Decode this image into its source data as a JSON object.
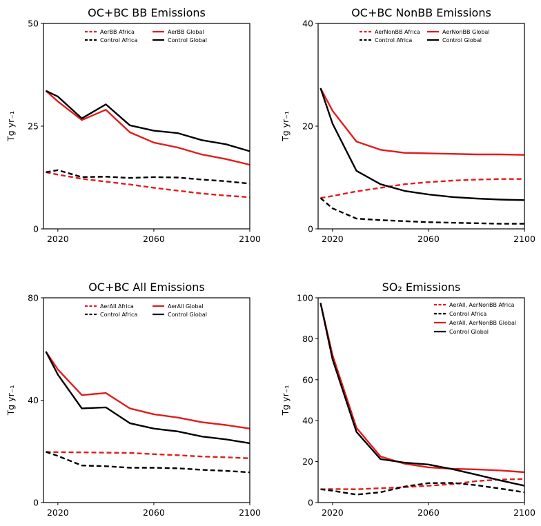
{
  "chart_data": [
    {
      "type": "line",
      "title": "OC+BC BB Emissions",
      "ylabel": "Tg yr₋₁",
      "xlim": [
        2014,
        2100
      ],
      "ylim": [
        0,
        50
      ],
      "xticks": [
        2020,
        2060,
        2100
      ],
      "yticks": [
        0,
        25,
        50
      ],
      "legend_cols": 2,
      "colors": {
        "red": "#e41a1c",
        "black": "#000000"
      },
      "series": [
        {
          "name": "AerBB Africa",
          "color": "red",
          "style": "dashed",
          "x": [
            2015,
            2020,
            2030,
            2040,
            2050,
            2060,
            2070,
            2080,
            2090,
            2100
          ],
          "y": [
            13.8,
            13.2,
            12.2,
            11.5,
            10.8,
            10.0,
            9.3,
            8.6,
            8.1,
            7.7
          ]
        },
        {
          "name": "AerBB Global",
          "color": "red",
          "style": "solid",
          "x": [
            2015,
            2020,
            2030,
            2040,
            2050,
            2060,
            2070,
            2080,
            2090,
            2100
          ],
          "y": [
            33.6,
            31.0,
            26.5,
            29.0,
            23.5,
            21.0,
            19.8,
            18.1,
            17.0,
            15.6
          ]
        },
        {
          "name": "Control Africa",
          "color": "black",
          "style": "dashed",
          "x": [
            2015,
            2020,
            2030,
            2040,
            2050,
            2060,
            2070,
            2080,
            2090,
            2100
          ],
          "y": [
            13.8,
            14.3,
            12.6,
            12.7,
            12.4,
            12.6,
            12.5,
            12.0,
            11.6,
            11.0
          ]
        },
        {
          "name": "Control Global",
          "color": "black",
          "style": "solid",
          "x": [
            2015,
            2020,
            2030,
            2040,
            2050,
            2060,
            2070,
            2080,
            2090,
            2100
          ],
          "y": [
            33.6,
            32.2,
            26.9,
            30.3,
            25.2,
            23.9,
            23.3,
            21.6,
            20.6,
            18.9
          ]
        }
      ]
    },
    {
      "type": "line",
      "title": "OC+BC NonBB Emissions",
      "ylabel": "Tg yr₋₁",
      "xlim": [
        2014,
        2100
      ],
      "ylim": [
        0,
        40
      ],
      "xticks": [
        2020,
        2060,
        2100
      ],
      "yticks": [
        0,
        20,
        40
      ],
      "legend_cols": 2,
      "colors": {
        "red": "#e41a1c",
        "black": "#000000"
      },
      "series": [
        {
          "name": "AerNonBB Africa",
          "color": "red",
          "style": "dashed",
          "x": [
            2015,
            2020,
            2030,
            2040,
            2050,
            2060,
            2070,
            2080,
            2090,
            2100
          ],
          "y": [
            6.0,
            6.4,
            7.3,
            8.0,
            8.7,
            9.1,
            9.4,
            9.6,
            9.7,
            9.7
          ]
        },
        {
          "name": "AerNonBB Global",
          "color": "red",
          "style": "solid",
          "x": [
            2015,
            2020,
            2030,
            2040,
            2050,
            2060,
            2070,
            2080,
            2090,
            2100
          ],
          "y": [
            27.4,
            23.0,
            17.0,
            15.4,
            14.8,
            14.7,
            14.6,
            14.5,
            14.5,
            14.4
          ]
        },
        {
          "name": "Control Africa",
          "color": "black",
          "style": "dashed",
          "x": [
            2015,
            2020,
            2030,
            2040,
            2050,
            2060,
            2070,
            2080,
            2090,
            2100
          ],
          "y": [
            6.0,
            4.0,
            2.0,
            1.7,
            1.5,
            1.3,
            1.2,
            1.1,
            1.0,
            1.0
          ]
        },
        {
          "name": "Control Global",
          "color": "black",
          "style": "solid",
          "x": [
            2015,
            2020,
            2030,
            2040,
            2050,
            2060,
            2070,
            2080,
            2090,
            2100
          ],
          "y": [
            27.4,
            20.5,
            11.3,
            8.7,
            7.4,
            6.7,
            6.2,
            5.9,
            5.7,
            5.6
          ]
        }
      ]
    },
    {
      "type": "line",
      "title": "OC+BC All Emissions",
      "ylabel": "Tg yr₋₁",
      "xlim": [
        2014,
        2100
      ],
      "ylim": [
        0,
        80
      ],
      "xticks": [
        2020,
        2060,
        2100
      ],
      "yticks": [
        0,
        40,
        80
      ],
      "legend_cols": 2,
      "colors": {
        "red": "#e41a1c",
        "black": "#000000"
      },
      "series": [
        {
          "name": "AerAll Africa",
          "color": "red",
          "style": "dashed",
          "x": [
            2015,
            2020,
            2030,
            2040,
            2050,
            2060,
            2070,
            2080,
            2090,
            2100
          ],
          "y": [
            19.8,
            19.7,
            19.6,
            19.5,
            19.4,
            18.9,
            18.5,
            18.0,
            17.7,
            17.3
          ]
        },
        {
          "name": "AerAll Global",
          "color": "red",
          "style": "solid",
          "x": [
            2015,
            2020,
            2030,
            2040,
            2050,
            2060,
            2070,
            2080,
            2090,
            2100
          ],
          "y": [
            59.0,
            52.0,
            42.0,
            42.8,
            36.8,
            34.5,
            33.2,
            31.4,
            30.3,
            28.9
          ]
        },
        {
          "name": "Control Africa",
          "color": "black",
          "style": "dashed",
          "x": [
            2015,
            2020,
            2030,
            2040,
            2050,
            2060,
            2070,
            2080,
            2090,
            2100
          ],
          "y": [
            19.8,
            18.2,
            14.5,
            14.2,
            13.6,
            13.6,
            13.4,
            12.8,
            12.4,
            11.8
          ]
        },
        {
          "name": "Control Global",
          "color": "black",
          "style": "solid",
          "x": [
            2015,
            2020,
            2030,
            2040,
            2050,
            2060,
            2070,
            2080,
            2090,
            2100
          ],
          "y": [
            59.0,
            50.0,
            36.8,
            37.2,
            31.0,
            28.9,
            27.8,
            25.8,
            24.7,
            23.2
          ]
        }
      ]
    },
    {
      "type": "line",
      "title": "SO₂ Emissions",
      "ylabel": "Tg yr₋₁",
      "xlim": [
        2014,
        2100
      ],
      "ylim": [
        0,
        100
      ],
      "xticks": [
        2020,
        2060,
        2100
      ],
      "yticks": [
        0,
        20,
        40,
        60,
        80,
        100
      ],
      "legend_cols": 1,
      "colors": {
        "red": "#e41a1c",
        "black": "#000000"
      },
      "series": [
        {
          "name": "AerAll, AerNonBB Africa",
          "color": "red",
          "style": "dashed",
          "x": [
            2015,
            2020,
            2030,
            2040,
            2050,
            2060,
            2070,
            2080,
            2090,
            2100
          ],
          "y": [
            6.5,
            6.6,
            6.5,
            7.0,
            7.5,
            8.2,
            9.0,
            10.5,
            11.2,
            11.5
          ]
        },
        {
          "name": "Control Africa",
          "color": "black",
          "style": "dashed",
          "x": [
            2015,
            2020,
            2030,
            2040,
            2050,
            2060,
            2070,
            2080,
            2090,
            2100
          ],
          "y": [
            6.5,
            5.8,
            3.9,
            5.0,
            7.8,
            9.5,
            9.6,
            8.5,
            6.8,
            5.0
          ]
        },
        {
          "name": "AerAll, AerNonBB Global",
          "color": "red",
          "style": "solid",
          "x": [
            2015,
            2020,
            2030,
            2040,
            2050,
            2060,
            2070,
            2080,
            2090,
            2100
          ],
          "y": [
            97.5,
            72.0,
            36.5,
            22.5,
            19.0,
            17.2,
            16.5,
            16.2,
            15.7,
            14.8
          ]
        },
        {
          "name": "Control Global",
          "color": "black",
          "style": "solid",
          "x": [
            2015,
            2020,
            2030,
            2040,
            2050,
            2060,
            2070,
            2080,
            2090,
            2100
          ],
          "y": [
            97.5,
            70.0,
            34.5,
            21.2,
            19.5,
            18.6,
            16.3,
            13.6,
            10.8,
            8.2
          ]
        }
      ]
    }
  ]
}
